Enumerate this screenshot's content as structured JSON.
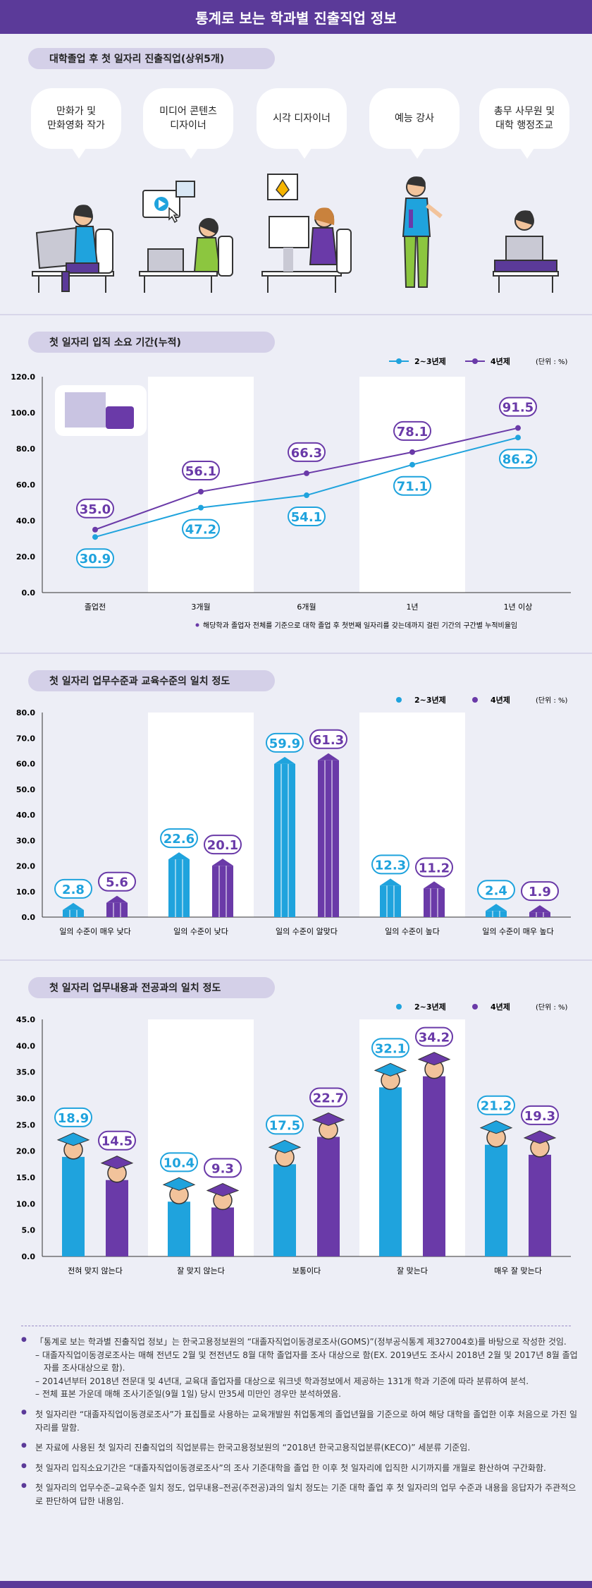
{
  "header": {
    "title": "통계로 보는 학과별 진출직업 정보"
  },
  "section1": {
    "title": "대학졸업 후 첫 일자리 진출직업(상위5개)",
    "jobs": [
      "만화가 및\n만화영화 작가",
      "미디어 콘텐츠\n디자이너",
      "시각 디자이너",
      "예능 강사",
      "총무 사무원 및\n대학 행정조교"
    ]
  },
  "section2": {
    "title": "첫 일자리 입직 소요 기간(누적)"
  },
  "section3": {
    "title": "첫 일자리 업무수준과 교육수준의 일치 정도"
  },
  "section4": {
    "title": "첫 일자리 업무내용과 전공과의 일치 정도"
  },
  "legend": {
    "s1": "2~3년제",
    "s2": "4년제",
    "unit": "(단위 : %)"
  },
  "colors": {
    "s1": "#1fa3dd",
    "s2": "#6a3aa8",
    "accent": "#5b3a99"
  },
  "chart_data": [
    {
      "type": "line",
      "categories": [
        "졸업전",
        "3개월",
        "6개월",
        "1년",
        "1년 이상"
      ],
      "series": [
        {
          "name": "2~3년제",
          "values": [
            30.9,
            47.2,
            54.1,
            71.1,
            86.2
          ]
        },
        {
          "name": "4년제",
          "values": [
            35.0,
            56.1,
            66.3,
            78.1,
            91.5
          ]
        }
      ],
      "ylim": [
        0,
        120
      ],
      "yticks": [
        "0.0",
        "20.0",
        "40.0",
        "60.0",
        "80.0",
        "100.0",
        "120.0"
      ],
      "note": "해당학과 졸업자 전체를 기준으로 대학 졸업 후 첫번째 일자리를 갖는데까지 걸린 기간의 구간별 누적비율임"
    },
    {
      "type": "bar",
      "categories": [
        "일의 수준이 매우 낮다",
        "일의 수준이 낮다",
        "일의 수준이 알맞다",
        "일의 수준이 높다",
        "일의 수준이 매우 높다"
      ],
      "series": [
        {
          "name": "2~3년제",
          "values": [
            2.8,
            22.6,
            59.9,
            12.3,
            2.4
          ]
        },
        {
          "name": "4년제",
          "values": [
            5.6,
            20.1,
            61.3,
            11.2,
            1.9
          ]
        }
      ],
      "ylim": [
        0,
        80
      ],
      "yticks": [
        "0.0",
        "10.0",
        "20.0",
        "30.0",
        "40.0",
        "50.0",
        "60.0",
        "70.0",
        "80.0"
      ]
    },
    {
      "type": "bar",
      "categories": [
        "전혀 맞지 않는다",
        "잘 맞지 않는다",
        "보통이다",
        "잘 맞는다",
        "매우 잘 맞는다"
      ],
      "series": [
        {
          "name": "2~3년제",
          "values": [
            18.9,
            10.4,
            17.5,
            32.1,
            21.2
          ]
        },
        {
          "name": "4년제",
          "values": [
            14.5,
            9.3,
            22.7,
            34.2,
            19.3
          ]
        }
      ],
      "ylim": [
        0,
        45
      ],
      "yticks": [
        "0.0",
        "5.0",
        "10.0",
        "15.0",
        "20.0",
        "25.0",
        "30.0",
        "35.0",
        "40.0",
        "45.0"
      ]
    }
  ],
  "notes": [
    {
      "text": "「통계로 보는 학과별 진출직업 정보」는 한국고용정보원의 “대졸자직업이동경로조사(GOMS)”(정부공식통계 제327004호)를 바탕으로 작성한 것임.",
      "subs": [
        "– 대졸자직업이동경로조사는 매해 전년도 2월 및 전전년도 8월 대학 졸업자를 조사 대상으로 함(EX. 2019년도 조사시 2018년 2월 및 2017년 8월 졸업자를 조사대상으로 함).",
        "– 2014년부터 2018년 전문대 및 4년대, 교육대 졸업자를 대상으로 워크넷 학과정보에서 제공하는 131개 학과 기준에 따라 분류하여 분석.",
        "– 전체 표본 가운데 매해 조사기준일(9월 1일) 당시 만35세 미만인 경우만 분석하였음."
      ]
    },
    {
      "text": "첫 일자리란 “대졸자직업이동경로조사”가 표집틀로 사용하는 교육개발원 취업통계의 졸업년월을 기준으로 하여 해당 대학을 졸업한 이후 처음으로 가진 일자리를 말함.",
      "subs": []
    },
    {
      "text": "본 자료에 사용된 첫 일자리 진출직업의 직업분류는 한국고용정보원의 “2018년 한국고용직업분류(KECO)” 세분류 기준임.",
      "subs": []
    },
    {
      "text": "첫 일자리 입직소요기간은 “대졸자직업이동경로조사”의 조사 기준대학을 졸업 한 이후 첫 일자리에 입직한 시기까지를 개월로 환산하여 구간화함.",
      "subs": []
    },
    {
      "text": "첫 일자리의 업무수준–교육수준 일치 정도, 업무내용–전공(주전공)과의 일치 정도는 기준 대학 졸업 후 첫 일자리의 업무 수준과 내용을 응답자가 주관적으로 판단하여 답한 내용임.",
      "subs": []
    }
  ]
}
